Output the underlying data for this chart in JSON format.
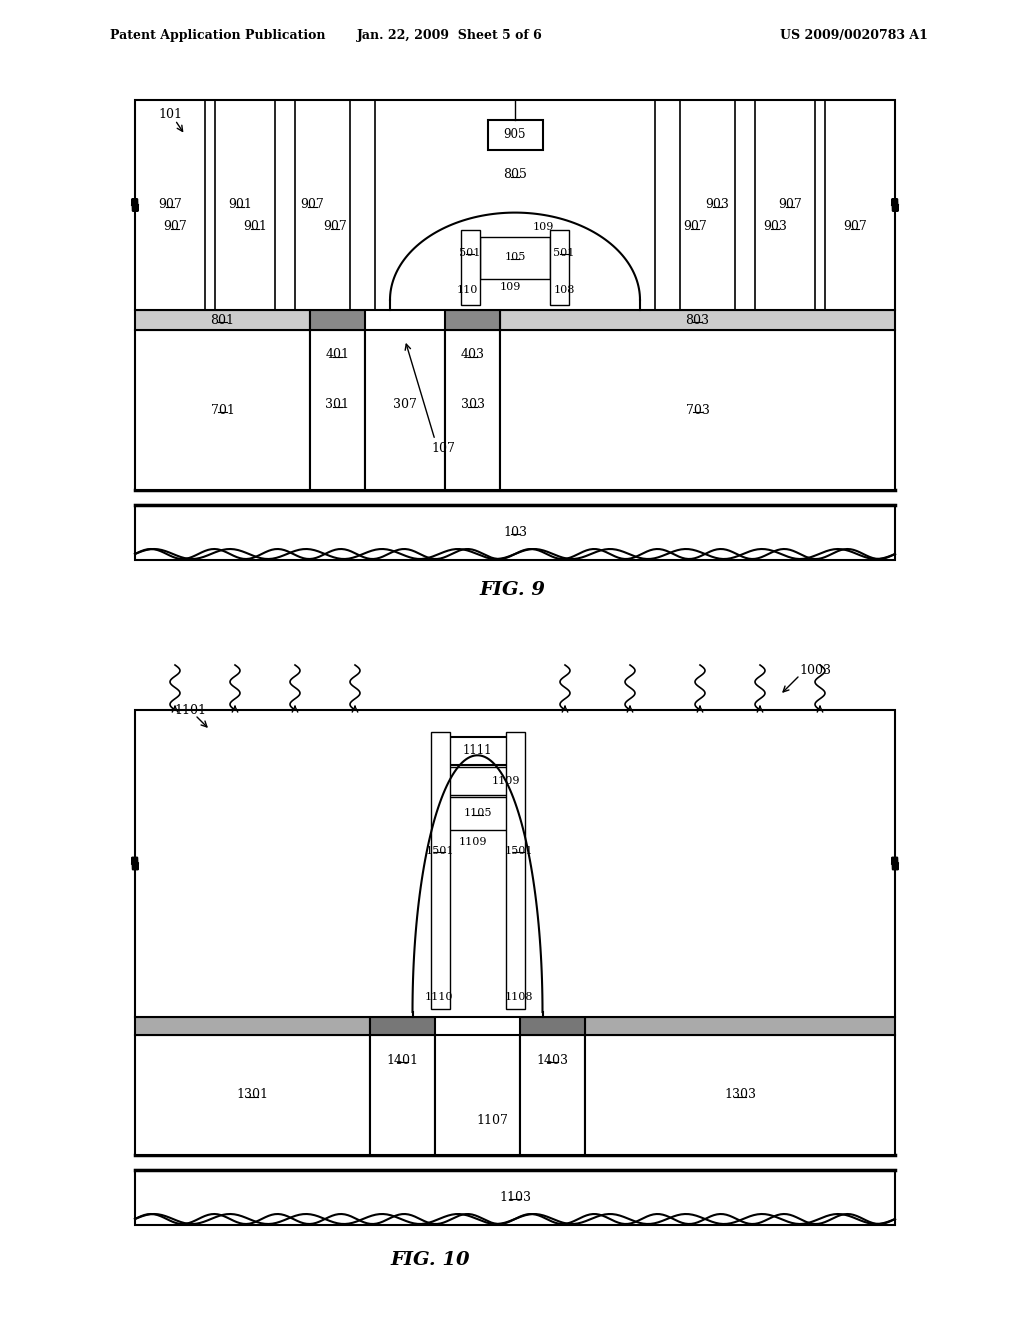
{
  "bg_color": "#ffffff",
  "line_color": "#000000",
  "header_left": "Patent Application Publication",
  "header_mid": "Jan. 22, 2009  Sheet 5 of 6",
  "header_right": "US 2009/0020783 A1",
  "fig9_label": "FIG. 9",
  "fig10_label": "FIG. 10"
}
